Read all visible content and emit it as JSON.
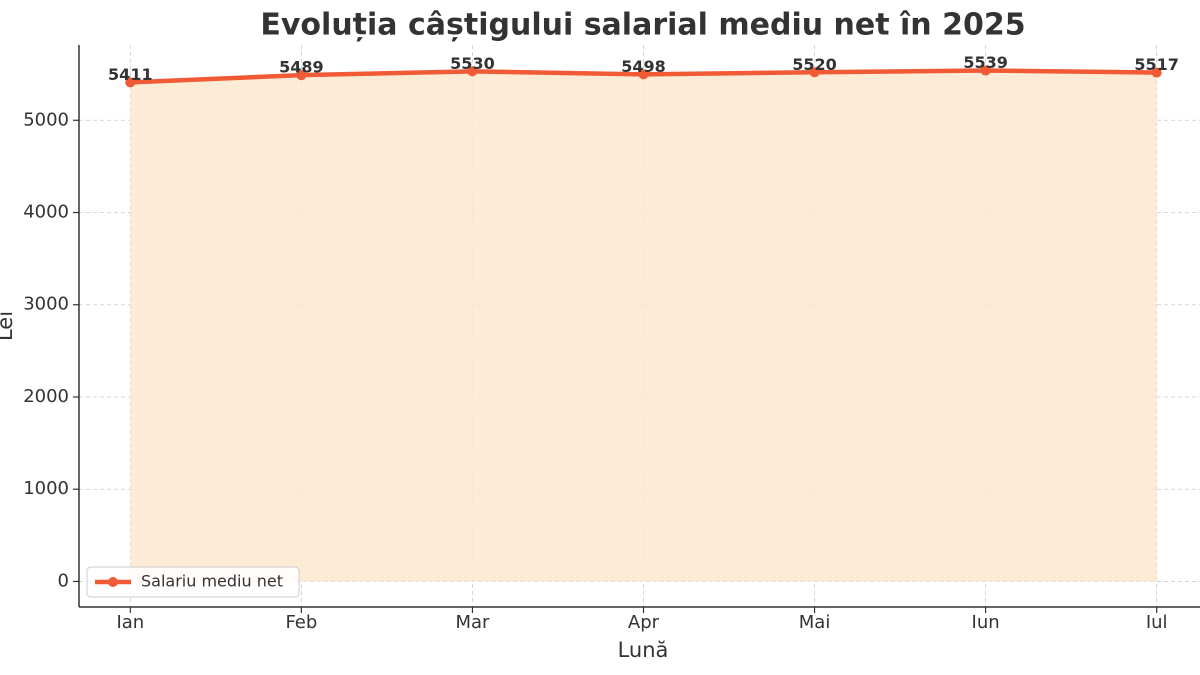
{
  "chart_data": {
    "type": "line",
    "title": "Evoluția câștigului salarial mediu net în 2025",
    "x_label": "Lună",
    "y_label": "Lei",
    "categories": [
      "Ian",
      "Feb",
      "Mar",
      "Apr",
      "Mai",
      "Iun",
      "Iul"
    ],
    "series": [
      {
        "name": "Salariu mediu net",
        "color": "#f05a35",
        "fill": "#fde8cf",
        "values": [
          5411,
          5489,
          5530,
          5498,
          5520,
          5539,
          5517
        ]
      }
    ],
    "ylim": [
      -277,
      5816
    ],
    "yticks": [
      0,
      1000,
      2000,
      3000,
      4000,
      5000
    ],
    "grid": true,
    "legend": "lower left"
  }
}
